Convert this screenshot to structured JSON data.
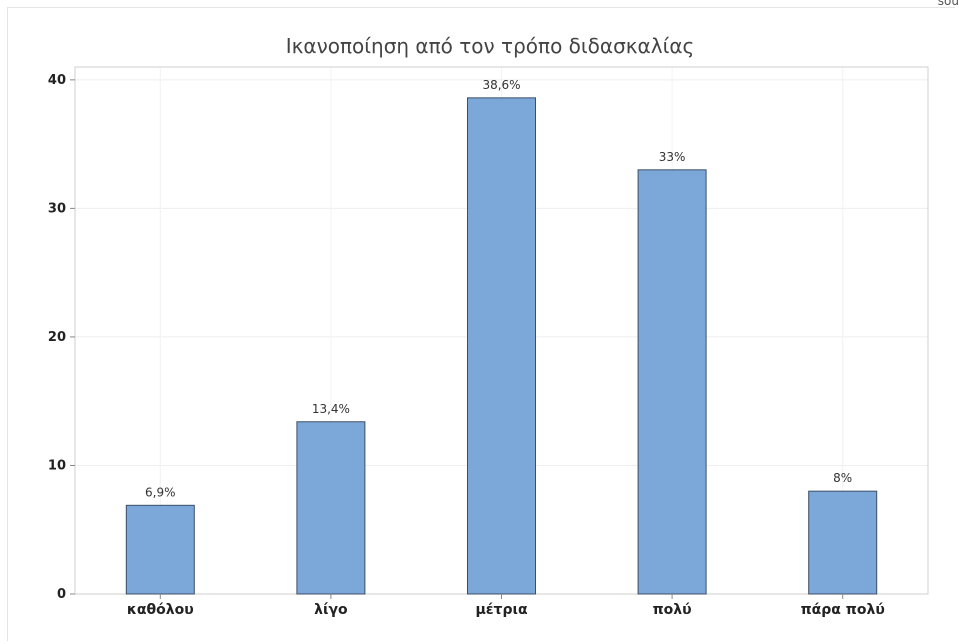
{
  "corner_text": "sou",
  "chart_data": {
    "type": "bar",
    "title": "Ικανοποίηση από τον τρόπο διδασκαλίας",
    "xlabel": "",
    "ylabel": "",
    "categories": [
      "καθόλου",
      "λίγο",
      "μέτρια",
      "πολύ",
      "πάρα πολύ"
    ],
    "values": [
      6.9,
      13.4,
      38.6,
      33,
      8
    ],
    "data_labels": [
      "6,9%",
      "13,4%",
      "38,6%",
      "33%",
      "8%"
    ],
    "ylim": [
      0,
      41
    ],
    "yticks": [
      0,
      10,
      20,
      30,
      40
    ],
    "grid": true,
    "bar_color": "#7ba7d9",
    "bar_edge_color": "#3c4f66"
  }
}
